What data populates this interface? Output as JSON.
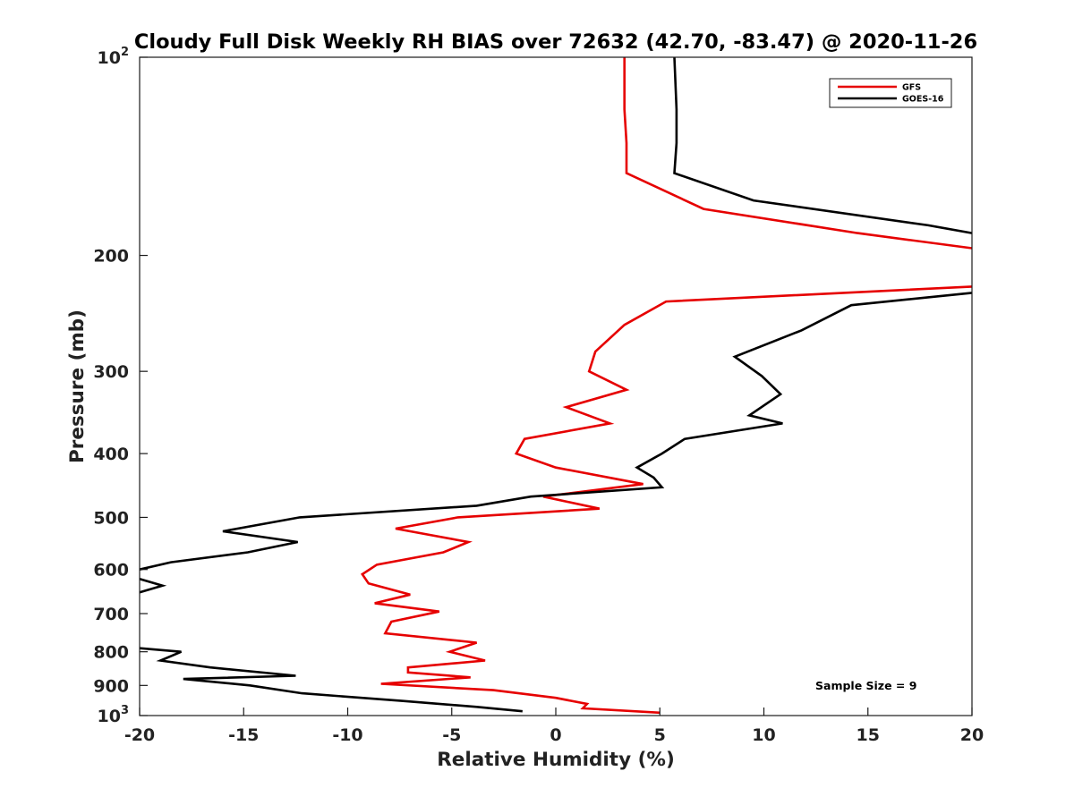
{
  "chart_data": {
    "type": "line",
    "title": "Cloudy Full Disk Weekly RH BIAS over 72632 (42.70, -83.47) @ 2020-11-26",
    "xlabel": "Relative Humidity (%)",
    "ylabel": "Pressure (mb)",
    "xlim": [
      -20,
      20
    ],
    "ylim": [
      100,
      1000
    ],
    "y_scale": "log",
    "y_reversed": true,
    "grid": false,
    "legend_position": "top-right",
    "x_ticks": [
      -20,
      -15,
      -10,
      -5,
      0,
      5,
      10,
      15,
      20
    ],
    "x_tick_labels": [
      "-20",
      "-15",
      "-10",
      "-5",
      "0",
      "5",
      "10",
      "15",
      "20"
    ],
    "y_ticks": [
      100,
      200,
      300,
      400,
      500,
      600,
      700,
      800,
      900,
      1000
    ],
    "y_tick_labels": [
      {
        "base": "10",
        "sup": "2"
      },
      {
        "base": "200",
        "sup": ""
      },
      {
        "base": "300",
        "sup": ""
      },
      {
        "base": "400",
        "sup": ""
      },
      {
        "base": "500",
        "sup": ""
      },
      {
        "base": "600",
        "sup": ""
      },
      {
        "base": "700",
        "sup": ""
      },
      {
        "base": "800",
        "sup": ""
      },
      {
        "base": "900",
        "sup": ""
      },
      {
        "base": "10",
        "sup": "3"
      }
    ],
    "annotation": "Sample Size = 9",
    "series": [
      {
        "name": "GFS",
        "color": "#e60000",
        "points": [
          [
            3.3,
            100
          ],
          [
            3.3,
            120
          ],
          [
            3.4,
            135
          ],
          [
            3.4,
            150
          ],
          [
            7.1,
            170
          ],
          [
            14.5,
            185
          ],
          [
            20.0,
            195
          ],
          [
            null,
            null
          ],
          [
            20.0,
            223
          ],
          [
            5.3,
            235
          ],
          [
            3.3,
            255
          ],
          [
            1.9,
            280
          ],
          [
            1.6,
            300
          ],
          [
            3.4,
            320
          ],
          [
            0.5,
            340
          ],
          [
            2.6,
            360
          ],
          [
            -1.5,
            380
          ],
          [
            -1.9,
            400
          ],
          [
            0.0,
            420
          ],
          [
            4.2,
            445
          ],
          [
            -0.6,
            465
          ],
          [
            2.1,
            485
          ],
          [
            -4.7,
            500
          ],
          [
            -7.7,
            520
          ],
          [
            -4.2,
            545
          ],
          [
            -5.4,
            565
          ],
          [
            -8.6,
            590
          ],
          [
            -9.3,
            610
          ],
          [
            -9.0,
            630
          ],
          [
            -7.0,
            655
          ],
          [
            -8.7,
            675
          ],
          [
            -5.6,
            695
          ],
          [
            -7.9,
            720
          ],
          [
            -8.2,
            750
          ],
          [
            -3.8,
            775
          ],
          [
            -5.1,
            800
          ],
          [
            -3.4,
            825
          ],
          [
            -7.1,
            845
          ],
          [
            -7.1,
            860
          ],
          [
            -4.1,
            875
          ],
          [
            -8.4,
            895
          ],
          [
            -3.0,
            915
          ],
          [
            0.0,
            940
          ],
          [
            1.5,
            960
          ],
          [
            1.3,
            975
          ],
          [
            5.0,
            990
          ]
        ]
      },
      {
        "name": "GOES-16",
        "color": "#000000",
        "points": [
          [
            5.7,
            100
          ],
          [
            5.8,
            120
          ],
          [
            5.8,
            135
          ],
          [
            5.7,
            150
          ],
          [
            9.5,
            165
          ],
          [
            17.9,
            180
          ],
          [
            20.0,
            185
          ],
          [
            null,
            null
          ],
          [
            20.0,
            228
          ],
          [
            14.2,
            238
          ],
          [
            11.8,
            260
          ],
          [
            8.6,
            285
          ],
          [
            9.9,
            305
          ],
          [
            10.8,
            325
          ],
          [
            9.3,
            350
          ],
          [
            10.9,
            360
          ],
          [
            6.2,
            380
          ],
          [
            5.1,
            400
          ],
          [
            3.9,
            420
          ],
          [
            4.7,
            435
          ],
          [
            5.1,
            450
          ],
          [
            -1.2,
            465
          ],
          [
            -3.8,
            480
          ],
          [
            -12.3,
            500
          ],
          [
            -16.0,
            525
          ],
          [
            -12.4,
            545
          ],
          [
            -14.8,
            565
          ],
          [
            -18.5,
            585
          ],
          [
            -20.0,
            600
          ],
          [
            null,
            null
          ],
          [
            -20.0,
            620
          ],
          [
            -18.9,
            635
          ],
          [
            -20.0,
            650
          ],
          [
            null,
            null
          ],
          [
            -20.0,
            790
          ],
          [
            -18.0,
            800
          ],
          [
            -19.0,
            825
          ],
          [
            -16.6,
            845
          ],
          [
            -12.5,
            870
          ],
          [
            -17.9,
            880
          ],
          [
            -14.7,
            900
          ],
          [
            -12.2,
            925
          ],
          [
            -7.4,
            950
          ],
          [
            -3.8,
            970
          ],
          [
            -1.6,
            985
          ]
        ]
      }
    ]
  }
}
